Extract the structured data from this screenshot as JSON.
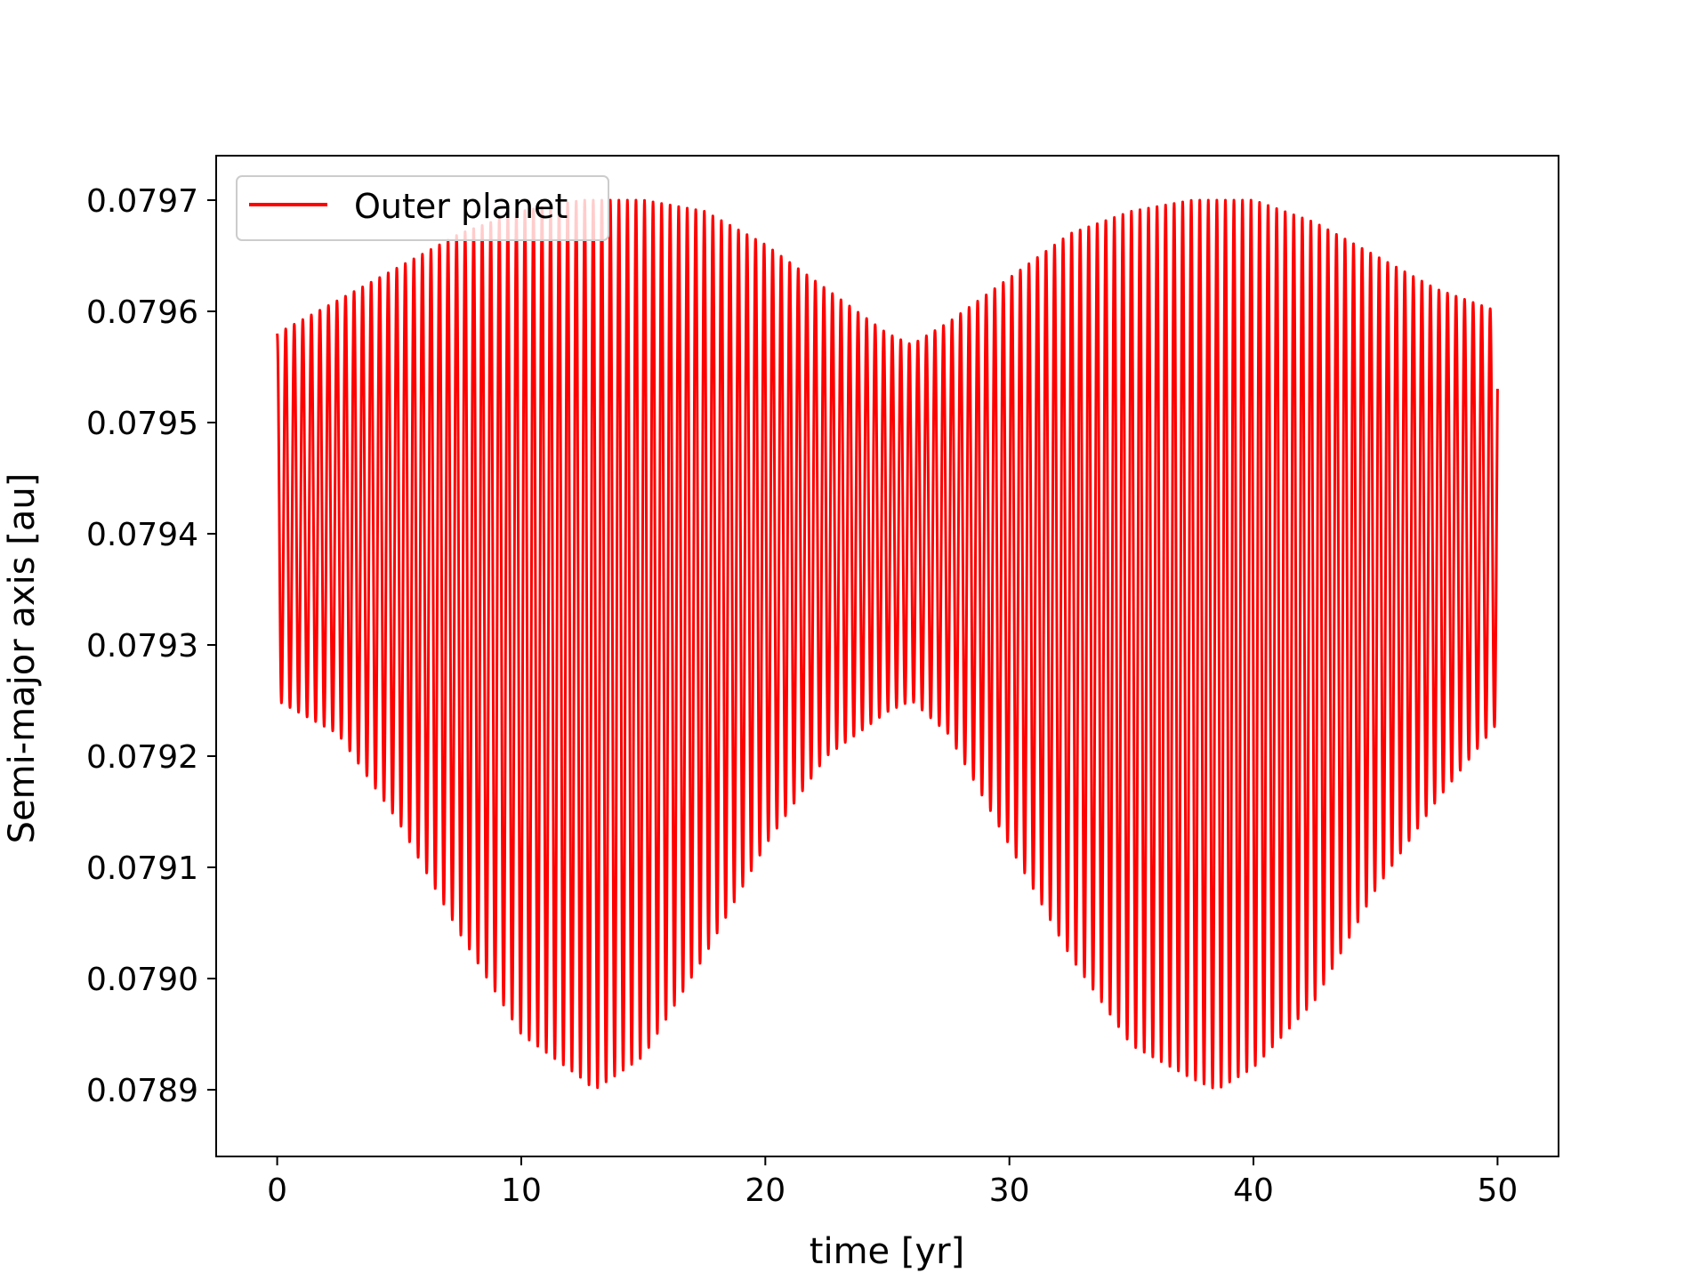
{
  "chart_data": {
    "type": "line",
    "xlabel": "time [yr]",
    "ylabel": "Semi-major axis [au]",
    "xlim": [
      -2.5,
      52.5
    ],
    "ylim": [
      0.07884,
      0.07974
    ],
    "xticks": [
      0,
      10,
      20,
      30,
      40,
      50
    ],
    "yticks": [
      0.0789,
      0.079,
      0.0791,
      0.0792,
      0.0793,
      0.0794,
      0.0795,
      0.0796,
      0.0797
    ],
    "ytick_labels": [
      "0.0789",
      "0.0790",
      "0.0791",
      "0.0792",
      "0.0793",
      "0.0794",
      "0.0795",
      "0.0796",
      "0.0797"
    ],
    "grid": false,
    "legend_position": "top-left",
    "series": [
      {
        "name": "Outer planet",
        "color": "#ff0000",
        "t_start": 0,
        "t_end": 50,
        "oscillation_period": 0.35,
        "upper_envelope": {
          "x": [
            0,
            2.5,
            5,
            7.5,
            10,
            12.5,
            15,
            17.5,
            20,
            22.5,
            25,
            26,
            27.5,
            30,
            32.5,
            35,
            37.5,
            40,
            42.5,
            45,
            47.5,
            50
          ],
          "y": [
            0.07958,
            0.07961,
            0.07964,
            0.07967,
            0.07969,
            0.0797,
            0.0797,
            0.07969,
            0.07966,
            0.07962,
            0.07958,
            0.07957,
            0.07959,
            0.07963,
            0.07967,
            0.07969,
            0.0797,
            0.0797,
            0.07968,
            0.07965,
            0.07962,
            0.0796
          ]
        },
        "lower_envelope": {
          "x": [
            0,
            2.5,
            5,
            7.5,
            10,
            12.5,
            13,
            15,
            17.5,
            20,
            22.5,
            25,
            26,
            27.5,
            30,
            32.5,
            35,
            37.5,
            38.5,
            40,
            42.5,
            45,
            47.5,
            50
          ],
          "y": [
            0.07925,
            0.07922,
            0.07914,
            0.07904,
            0.07895,
            0.07891,
            0.0789,
            0.07893,
            0.07902,
            0.07912,
            0.0792,
            0.07924,
            0.07925,
            0.07922,
            0.07912,
            0.07902,
            0.07894,
            0.07891,
            0.0789,
            0.07892,
            0.07898,
            0.07908,
            0.07916,
            0.07923
          ]
        }
      }
    ]
  }
}
